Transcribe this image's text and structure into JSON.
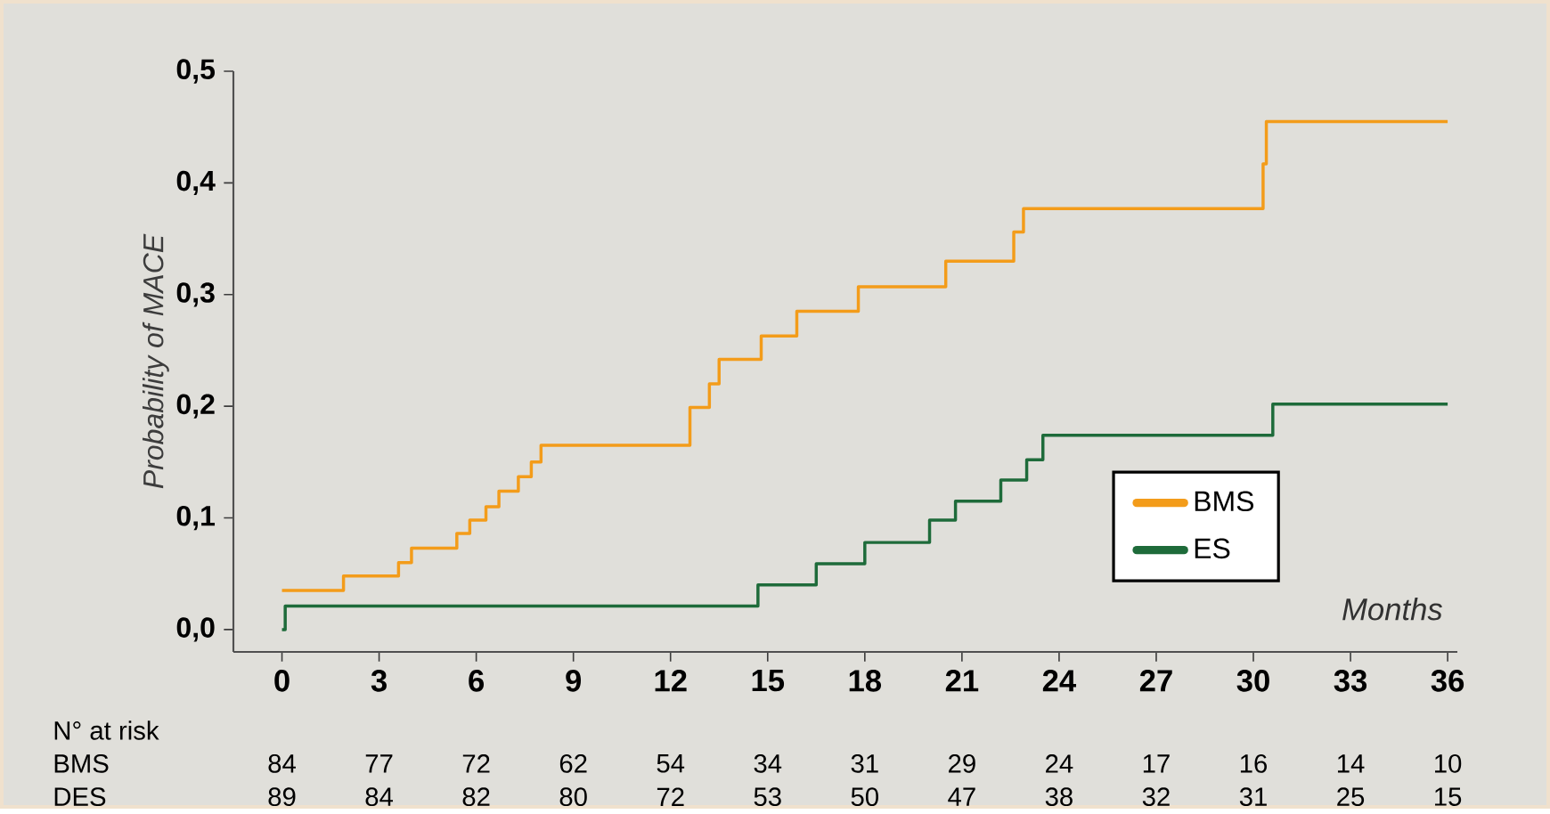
{
  "chart_data": {
    "type": "step",
    "xlabel": "Months",
    "ylabel": "Probability of MACE",
    "xlim": [
      -1.5,
      36.3
    ],
    "ylim": [
      -0.02,
      0.5
    ],
    "xticks": [
      0,
      3,
      6,
      9,
      12,
      15,
      18,
      21,
      24,
      27,
      30,
      33,
      36
    ],
    "yticks": [
      {
        "value": 0,
        "label": "0,0"
      },
      {
        "value": 0.1,
        "label": "0,1"
      },
      {
        "value": 0.2,
        "label": "0,2"
      },
      {
        "value": 0.3,
        "label": "0,3"
      },
      {
        "value": 0.4,
        "label": "0,4"
      },
      {
        "value": 0.5,
        "label": "0,5"
      }
    ],
    "legend": "bottom right",
    "grid": false,
    "series": [
      {
        "name": "BMS",
        "color": "#f39c1a",
        "x": [
          0,
          1.9,
          3.6,
          4.0,
          5.4,
          5.8,
          6.3,
          6.7,
          7.3,
          7.7,
          8.0,
          12.6,
          13.2,
          13.5,
          14.8,
          15.9,
          17.8,
          20.5,
          22.6,
          22.9,
          30.3,
          30.4,
          36
        ],
        "values": [
          0.035,
          0.048,
          0.06,
          0.073,
          0.086,
          0.098,
          0.11,
          0.124,
          0.137,
          0.15,
          0.165,
          0.199,
          0.22,
          0.242,
          0.263,
          0.285,
          0.307,
          0.33,
          0.356,
          0.377,
          0.417,
          0.455,
          0.455
        ]
      },
      {
        "name": "ES",
        "color": "#1e6b3a",
        "x": [
          0,
          0.1,
          14.7,
          16.5,
          18.0,
          20.0,
          20.8,
          22.2,
          23.0,
          23.5,
          30.6,
          36
        ],
        "values": [
          0,
          0.021,
          0.04,
          0.059,
          0.078,
          0.098,
          0.115,
          0.134,
          0.152,
          0.174,
          0.202,
          0.202
        ]
      }
    ],
    "annotations": [
      "N° at risk",
      "BMS",
      "84",
      "77",
      "72",
      "62",
      "54",
      "34",
      "31",
      "29",
      "24",
      "17",
      "16",
      "14",
      "10",
      "DES",
      "89",
      "84",
      "82",
      "80",
      "72",
      "53",
      "50",
      "47",
      "38",
      "32",
      "31",
      "25",
      "15"
    ]
  }
}
